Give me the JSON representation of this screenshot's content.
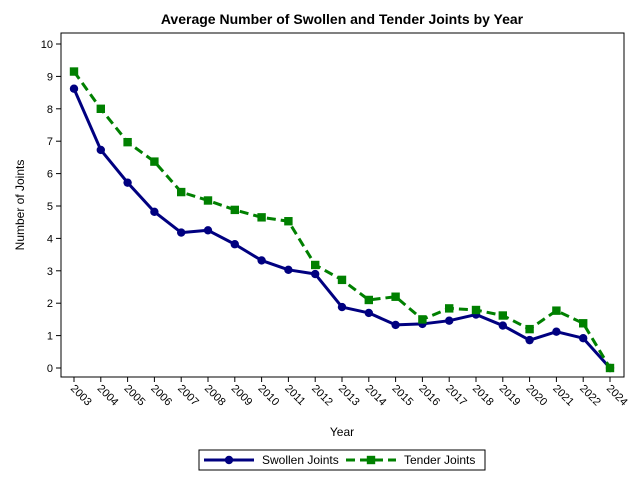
{
  "chart_data": {
    "type": "line",
    "title": "Average Number of Swollen and Tender Joints by Year",
    "xlabel": "Year",
    "ylabel": "Number of Joints",
    "ylim": [
      0,
      10
    ],
    "yticks": [
      0,
      1,
      2,
      3,
      4,
      5,
      6,
      7,
      8,
      9,
      10
    ],
    "grid": false,
    "legend_position": "bottom",
    "categories": [
      "2003",
      "2004",
      "2005",
      "2006",
      "2007",
      "2008",
      "2009",
      "2010",
      "2011",
      "2012",
      "2013",
      "2014",
      "2015",
      "2016",
      "2017",
      "2018",
      "2019",
      "2020",
      "2021",
      "2022",
      "2024"
    ],
    "series": [
      {
        "name": "Swollen Joints",
        "color": "#000080",
        "line_style": "solid",
        "marker": "circle",
        "values": [
          8.62,
          6.73,
          5.72,
          4.82,
          4.18,
          4.25,
          3.82,
          3.32,
          3.03,
          2.9,
          1.88,
          1.7,
          1.33,
          1.36,
          1.46,
          1.65,
          1.31,
          0.86,
          1.12,
          0.92,
          0.0
        ]
      },
      {
        "name": "Tender Joints",
        "color": "#008000",
        "line_style": "dashed",
        "marker": "square",
        "values": [
          9.15,
          8.0,
          6.97,
          6.37,
          5.43,
          5.17,
          4.88,
          4.65,
          4.53,
          3.18,
          2.72,
          2.1,
          2.2,
          1.5,
          1.84,
          1.79,
          1.62,
          1.2,
          1.77,
          1.38,
          0.0
        ]
      }
    ]
  }
}
